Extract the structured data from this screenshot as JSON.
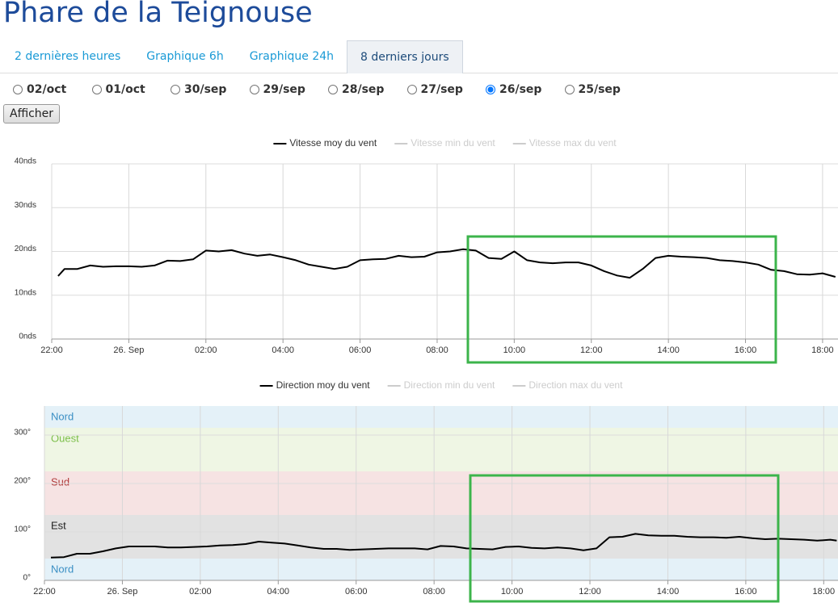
{
  "header": {
    "title": "Phare de la Teignouse"
  },
  "tabs": [
    {
      "label": "2 dernières heures"
    },
    {
      "label": "Graphique 6h"
    },
    {
      "label": "Graphique 24h"
    },
    {
      "label": "8 derniers jours"
    }
  ],
  "active_tab": 3,
  "dates": [
    "02/oct",
    "01/oct",
    "30/sep",
    "29/sep",
    "28/sep",
    "27/sep",
    "26/sep",
    "25/sep"
  ],
  "selected_date": 6,
  "button": {
    "label": "Afficher"
  },
  "chart_data": [
    {
      "type": "line",
      "x": [
        -110,
        -100,
        -80,
        -60,
        -40,
        -20,
        0,
        20,
        40,
        60,
        80,
        100,
        120,
        140,
        160,
        180,
        200,
        220,
        240,
        260,
        280,
        300,
        320,
        340,
        360,
        380,
        400,
        420,
        440,
        460,
        480,
        500,
        520,
        540,
        560,
        580,
        600,
        620,
        640,
        660,
        680,
        700,
        720,
        740,
        760,
        780,
        800,
        820,
        840,
        860,
        880,
        900,
        920,
        940,
        960,
        980,
        1000,
        1020,
        1040,
        1060,
        1080,
        1100
      ],
      "xlim": [
        -120,
        1104
      ],
      "xticks": [
        {
          "value": -120,
          "label": "22:00"
        },
        {
          "value": 0,
          "label": "26. Sep"
        },
        {
          "value": 120,
          "label": "02:00"
        },
        {
          "value": 240,
          "label": "04:00"
        },
        {
          "value": 360,
          "label": "06:00"
        },
        {
          "value": 480,
          "label": "08:00"
        },
        {
          "value": 600,
          "label": "10:00"
        },
        {
          "value": 720,
          "label": "12:00"
        },
        {
          "value": 840,
          "label": "14:00"
        },
        {
          "value": 960,
          "label": "16:00"
        },
        {
          "value": 1080,
          "label": "18:00"
        }
      ],
      "ylim": [
        0,
        40
      ],
      "yticks": [
        {
          "value": 0,
          "label": "0nds"
        },
        {
          "value": 10,
          "label": "10nds"
        },
        {
          "value": 20,
          "label": "20nds"
        },
        {
          "value": 30,
          "label": "30nds"
        },
        {
          "value": 40,
          "label": "40nds"
        }
      ],
      "grid": true,
      "series": [
        {
          "name": "Vitesse moy du vent",
          "color": "#000000",
          "values": [
            14.4,
            16.0,
            16.0,
            16.8,
            16.5,
            16.6,
            16.6,
            16.5,
            16.8,
            17.9,
            17.8,
            18.2,
            20.2,
            20.0,
            20.3,
            19.5,
            19.0,
            19.3,
            18.7,
            18.0,
            17.0,
            16.5,
            16.0,
            16.5,
            18.0,
            18.2,
            18.3,
            19.0,
            18.7,
            18.8,
            19.8,
            20.0,
            20.5,
            20.2,
            18.5,
            18.3,
            20.0,
            18.0,
            17.5,
            17.3,
            17.5,
            17.5,
            16.8,
            15.5,
            14.5,
            14.0,
            16.0,
            18.5,
            19.0,
            18.8,
            18.7,
            18.5,
            18.0,
            17.8,
            17.5,
            17.0,
            15.8,
            15.5,
            14.8,
            14.7,
            15.0,
            14.2
          ]
        }
      ],
      "hidden_series": [
        {
          "name": "Vitesse min du vent",
          "color": "#cccccc"
        },
        {
          "name": "Vitesse max du vent",
          "color": "#cccccc"
        }
      ]
    },
    {
      "type": "line",
      "x": [
        -110,
        -90,
        -70,
        -50,
        -30,
        -10,
        10,
        30,
        50,
        70,
        90,
        110,
        130,
        150,
        170,
        190,
        210,
        230,
        250,
        270,
        290,
        310,
        330,
        350,
        370,
        390,
        410,
        430,
        450,
        470,
        490,
        510,
        530,
        550,
        570,
        590,
        610,
        630,
        650,
        670,
        690,
        710,
        730,
        750,
        770,
        790,
        810,
        830,
        850,
        870,
        890,
        910,
        930,
        950,
        970,
        990,
        1010,
        1030,
        1050,
        1070,
        1090,
        1100
      ],
      "xlim": [
        -120,
        1102
      ],
      "xticks": [
        {
          "value": -120,
          "label": "22:00"
        },
        {
          "value": 0,
          "label": "26. Sep"
        },
        {
          "value": 120,
          "label": "02:00"
        },
        {
          "value": 240,
          "label": "04:00"
        },
        {
          "value": 360,
          "label": "06:00"
        },
        {
          "value": 480,
          "label": "08:00"
        },
        {
          "value": 600,
          "label": "10:00"
        },
        {
          "value": 720,
          "label": "12:00"
        },
        {
          "value": 840,
          "label": "14:00"
        },
        {
          "value": 960,
          "label": "16:00"
        },
        {
          "value": 1080,
          "label": "18:00"
        }
      ],
      "ylim": [
        0,
        360
      ],
      "yticks": [
        {
          "value": 0,
          "label": "0°"
        },
        {
          "value": 100,
          "label": "100°"
        },
        {
          "value": 200,
          "label": "200°"
        },
        {
          "value": 300,
          "label": "300°"
        }
      ],
      "grid": true,
      "plot_bands": [
        {
          "from": 0,
          "to": 45,
          "label": "Nord",
          "color": "#e4f1f8",
          "label_color": "#3a8fc4"
        },
        {
          "from": 45,
          "to": 135,
          "label": "Est",
          "color": "#e2e2e2",
          "label_color": "#222222"
        },
        {
          "from": 135,
          "to": 225,
          "label": "Sud",
          "color": "#f6e3e3",
          "label_color": "#b03a3a"
        },
        {
          "from": 225,
          "to": 315,
          "label": "Ouest",
          "color": "#eff6e4",
          "label_color": "#7cbf4a"
        },
        {
          "from": 315,
          "to": 360,
          "label": "Nord",
          "color": "#e4f1f8",
          "label_color": "#3a8fc4"
        }
      ],
      "series": [
        {
          "name": "Direction moy du vent",
          "color": "#000000",
          "values": [
            47,
            48,
            55,
            55,
            60,
            66,
            70,
            70,
            70,
            68,
            68,
            69,
            70,
            72,
            73,
            75,
            80,
            78,
            76,
            72,
            68,
            65,
            65,
            63,
            64,
            65,
            66,
            66,
            66,
            64,
            71,
            70,
            66,
            65,
            64,
            69,
            70,
            67,
            66,
            68,
            66,
            62,
            66,
            89,
            90,
            96,
            93,
            92,
            92,
            90,
            89,
            89,
            88,
            90,
            87,
            85,
            86,
            85,
            84,
            82,
            84,
            82
          ]
        }
      ],
      "hidden_series": [
        {
          "name": "Direction min du vent",
          "color": "#cccccc"
        },
        {
          "name": "Direction max du vent",
          "color": "#cccccc"
        }
      ]
    }
  ]
}
